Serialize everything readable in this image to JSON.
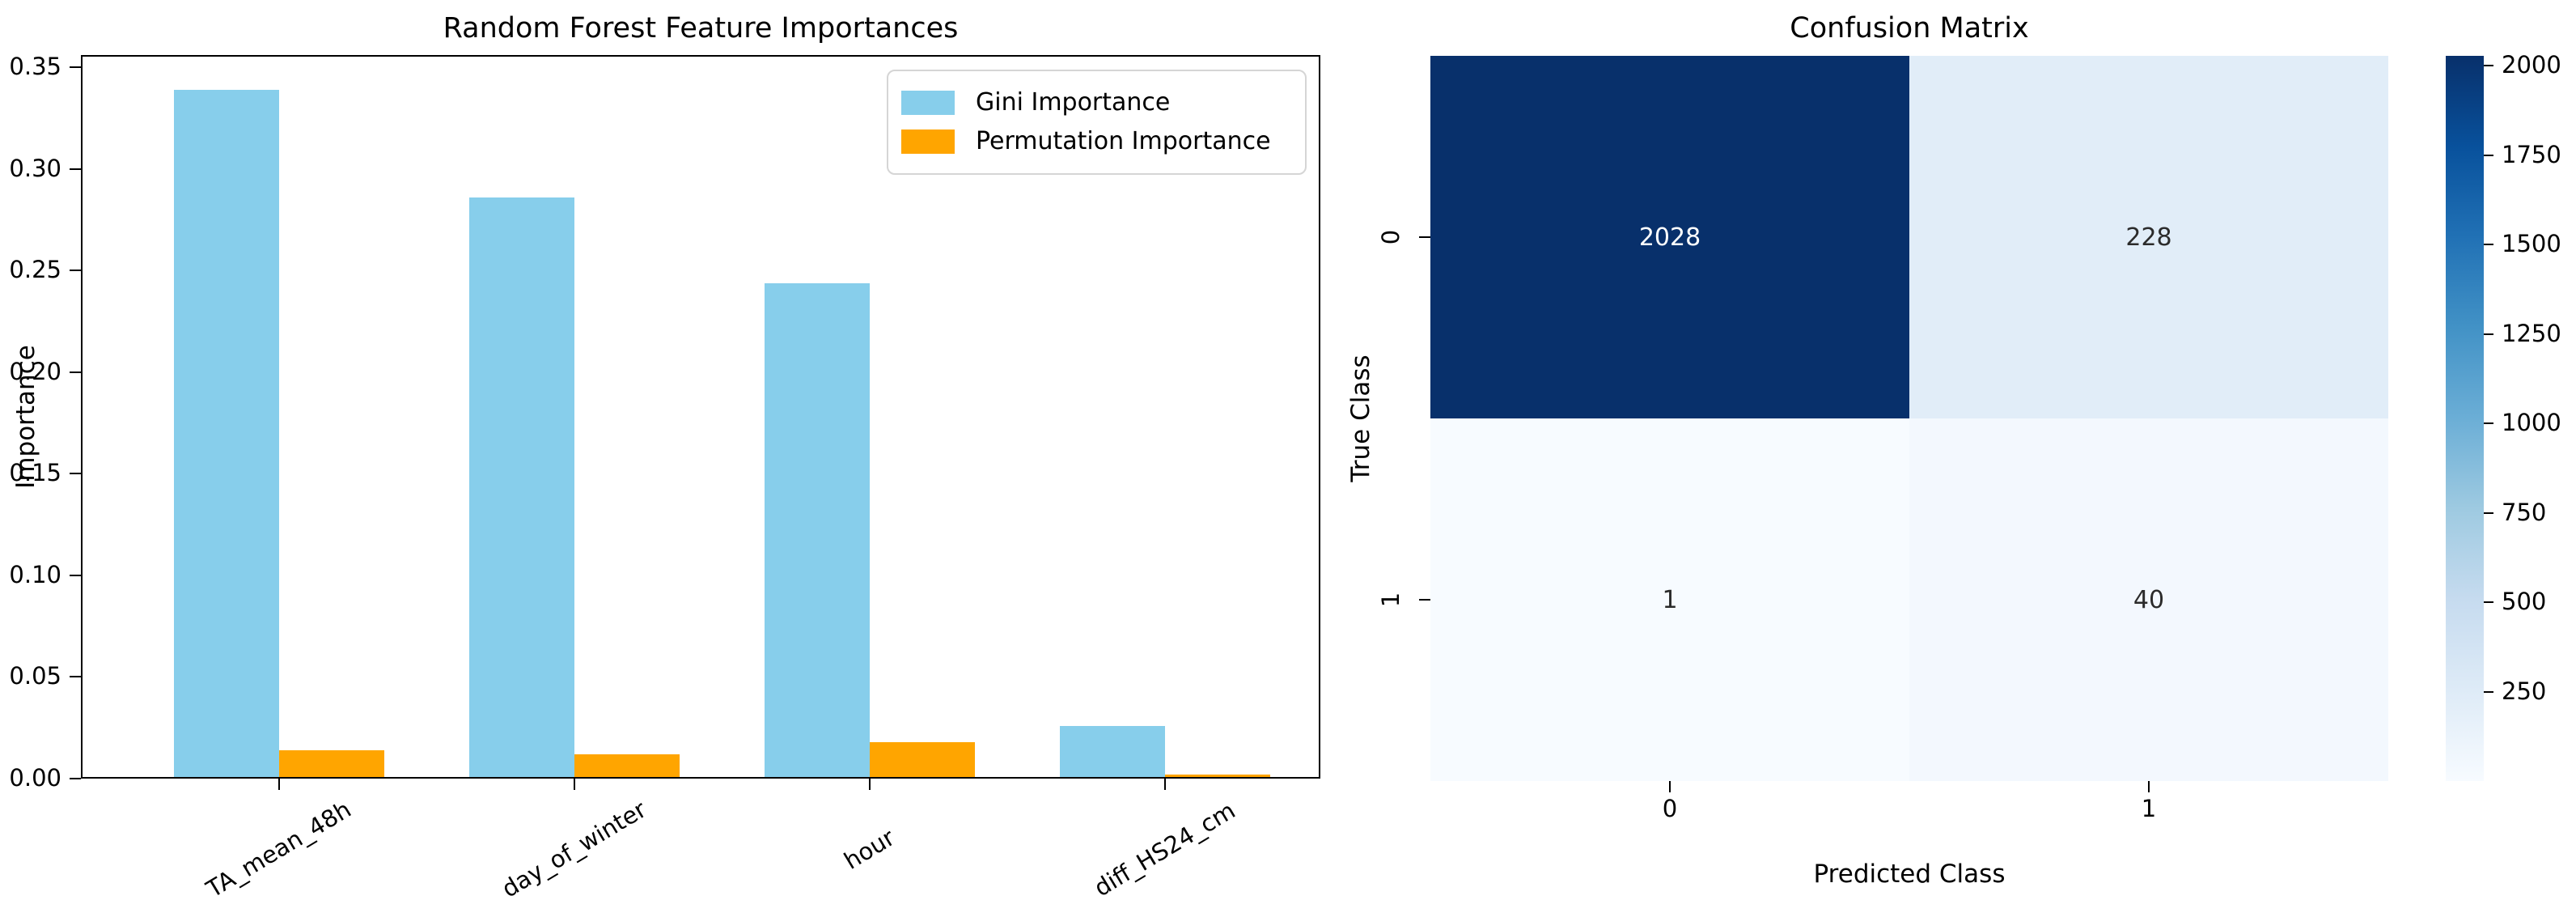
{
  "figure": {
    "kind": "matplotlib-figure",
    "background": "#ffffff"
  },
  "colors": {
    "gini_bar": "#87ceeb",
    "permutation_bar": "#ffa500",
    "axis": "#000000",
    "legend_border": "#d5d5d5",
    "annotation_on_dark": "#ffffff",
    "annotation_on_light": "#2b2b2b",
    "blues_colormap_stops": [
      "#f7fbff",
      "#deebf7",
      "#c6dbef",
      "#9ecae1",
      "#6baed6",
      "#4292c6",
      "#2171b5",
      "#08519c",
      "#08306b"
    ]
  },
  "chart_data": [
    {
      "type": "bar",
      "title": "Random Forest Feature Importances",
      "xlabel": "",
      "ylabel": "Importance",
      "categories": [
        "TA_mean_48h",
        "day_of_winter",
        "hour",
        "diff_HS24_cm"
      ],
      "series": [
        {
          "name": "Gini Importance",
          "color": "#87ceeb",
          "values": [
            0.338,
            0.285,
            0.243,
            0.025
          ]
        },
        {
          "name": "Permutation Importance",
          "color": "#ffa500",
          "values": [
            0.013,
            0.011,
            0.017,
            0.001
          ]
        }
      ],
      "ylim": [
        0,
        0.356
      ],
      "yticks": {
        "values": [
          0,
          0.05,
          0.1,
          0.15,
          0.2,
          0.25,
          0.3,
          0.35
        ],
        "labels": [
          "0.00",
          "0.05",
          "0.10",
          "0.15",
          "0.20",
          "0.25",
          "0.30",
          "0.35"
        ]
      },
      "xtick_rotation_deg": 31,
      "legend": {
        "position": "upper right",
        "entries": [
          "Gini Importance",
          "Permutation Importance"
        ]
      },
      "grid": false
    },
    {
      "type": "heatmap",
      "title": "Confusion Matrix",
      "xlabel": "Predicted Class",
      "ylabel": "True Class",
      "x_tick_labels": [
        "0",
        "1"
      ],
      "y_tick_labels": [
        "0",
        "1"
      ],
      "values": [
        [
          2028,
          228
        ],
        [
          1,
          40
        ]
      ],
      "cell_labels": [
        [
          "2028",
          "228"
        ],
        [
          "1",
          "40"
        ]
      ],
      "vmin": 0,
      "vmax": 2028,
      "colormap": "Blues",
      "colorbar_ticks": {
        "values": [
          250,
          500,
          750,
          1000,
          1250,
          1500,
          1750,
          2000
        ],
        "labels": [
          "250",
          "500",
          "750",
          "1000",
          "1250",
          "1500",
          "1750",
          "2000"
        ]
      }
    }
  ]
}
